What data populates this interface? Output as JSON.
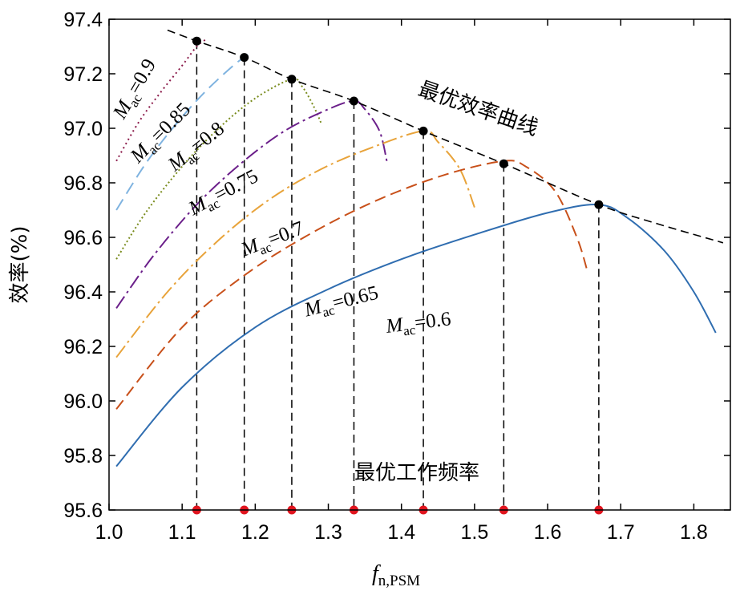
{
  "chart_data": {
    "type": "line",
    "title": "",
    "ylabel": "效率(%)",
    "xlabel_main": "f",
    "xlabel_sub": "n,PSM",
    "xlim": [
      1.0,
      1.85
    ],
    "ylim": [
      95.6,
      97.4
    ],
    "xticks": [
      1.0,
      1.1,
      1.2,
      1.3,
      1.4,
      1.5,
      1.6,
      1.7,
      1.8
    ],
    "xtick_labels": [
      "1.0",
      "1.1",
      "1.2",
      "1.3",
      "1.4",
      "1.5",
      "1.6",
      "1.7",
      "1.8"
    ],
    "yticks": [
      95.6,
      95.8,
      96.0,
      96.2,
      96.4,
      96.6,
      96.8,
      97.0,
      97.2,
      97.4
    ],
    "ytick_labels": [
      "95.6",
      "95.8",
      "96.0",
      "96.2",
      "96.4",
      "96.6",
      "96.8",
      "97.0",
      "97.2",
      "97.4"
    ],
    "series": [
      {
        "name": "M_ac=0.9",
        "m_main": "M",
        "m_sub": "ac",
        "m_value": "=0.9",
        "color": "#8b1a4a",
        "dash": "2,4",
        "x": [
          1.01,
          1.04,
          1.07,
          1.1,
          1.12,
          1.135
        ],
        "y": [
          96.88,
          97.02,
          97.13,
          97.23,
          97.3,
          97.33
        ]
      },
      {
        "name": "M_ac=0.85",
        "m_main": "M",
        "m_sub": "ac",
        "m_value": "=0.85",
        "color": "#7fb3e0",
        "dash": "16,8",
        "x": [
          1.01,
          1.05,
          1.09,
          1.13,
          1.17,
          1.19
        ],
        "y": [
          96.7,
          96.87,
          97.01,
          97.13,
          97.23,
          97.27
        ]
      },
      {
        "name": "M_ac=0.8",
        "m_main": "M",
        "m_sub": "ac",
        "m_value": "=0.8",
        "color": "#7a8c1e",
        "dash": "2,3",
        "x": [
          1.01,
          1.05,
          1.1,
          1.15,
          1.2,
          1.25,
          1.265,
          1.28,
          1.29
        ],
        "y": [
          96.52,
          96.69,
          96.86,
          97.0,
          97.11,
          97.18,
          97.15,
          97.08,
          97.02
        ]
      },
      {
        "name": "M_ac=0.75",
        "m_main": "M",
        "m_sub": "ac",
        "m_value": "=0.75",
        "color": "#6b1f8a",
        "dash": "18,5,3,5",
        "x": [
          1.01,
          1.06,
          1.12,
          1.18,
          1.24,
          1.3,
          1.335,
          1.35,
          1.37,
          1.38
        ],
        "y": [
          96.34,
          96.53,
          96.72,
          96.87,
          96.99,
          97.07,
          97.1,
          97.07,
          96.99,
          96.88
        ]
      },
      {
        "name": "M_ac=0.7",
        "m_main": "M",
        "m_sub": "ac",
        "m_value": "=0.7",
        "color": "#e8a33a",
        "dash": "18,5,3,5",
        "x": [
          1.01,
          1.08,
          1.15,
          1.22,
          1.29,
          1.36,
          1.43,
          1.45,
          1.48,
          1.5
        ],
        "y": [
          96.16,
          96.4,
          96.59,
          96.74,
          96.85,
          96.93,
          96.99,
          96.95,
          96.85,
          96.71
        ]
      },
      {
        "name": "M_ac=0.65",
        "m_main": "M",
        "m_sub": "ac",
        "m_value": "=0.65",
        "color": "#c8501a",
        "dash": "14,7",
        "x": [
          1.01,
          1.1,
          1.19,
          1.28,
          1.37,
          1.46,
          1.54,
          1.57,
          1.61,
          1.64,
          1.655
        ],
        "y": [
          95.97,
          96.27,
          96.47,
          96.62,
          96.74,
          96.83,
          96.88,
          96.86,
          96.77,
          96.6,
          96.47
        ]
      },
      {
        "name": "M_ac=0.6",
        "m_main": "M",
        "m_sub": "ac",
        "m_value": "=0.6",
        "color": "#2f6db0",
        "dash": "",
        "x": [
          1.01,
          1.1,
          1.2,
          1.3,
          1.4,
          1.5,
          1.6,
          1.67,
          1.71,
          1.76,
          1.8,
          1.83
        ],
        "y": [
          95.76,
          96.05,
          96.27,
          96.41,
          96.52,
          96.61,
          96.69,
          96.72,
          96.67,
          96.55,
          96.4,
          96.25
        ]
      }
    ],
    "optimal_curve": {
      "name": "最优效率曲线",
      "color": "#000000",
      "x": [
        1.08,
        1.12,
        1.185,
        1.25,
        1.335,
        1.43,
        1.54,
        1.67,
        1.75,
        1.84
      ],
      "y": [
        97.36,
        97.32,
        97.26,
        97.18,
        97.1,
        96.99,
        96.87,
        96.72,
        96.65,
        96.58
      ]
    },
    "optimal_points": {
      "x": [
        1.12,
        1.185,
        1.25,
        1.335,
        1.43,
        1.54,
        1.67
      ],
      "y": [
        97.32,
        97.26,
        97.18,
        97.1,
        96.99,
        96.87,
        96.72
      ]
    },
    "optimal_frequencies": {
      "name": "最优工作频率",
      "x": [
        1.12,
        1.185,
        1.25,
        1.335,
        1.43,
        1.54,
        1.67
      ],
      "marker_color": "#e0141e"
    },
    "annotations": {
      "optimal_efficiency_curve": "最优效率曲线",
      "optimal_operating_frequency": "最优工作频率"
    }
  }
}
